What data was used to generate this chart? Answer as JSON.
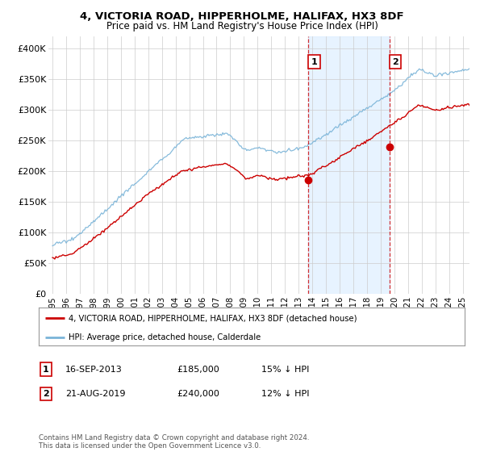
{
  "title": "4, VICTORIA ROAD, HIPPERHOLME, HALIFAX, HX3 8DF",
  "subtitle": "Price paid vs. HM Land Registry's House Price Index (HPI)",
  "legend_line1": "4, VICTORIA ROAD, HIPPERHOLME, HALIFAX, HX3 8DF (detached house)",
  "legend_line2": "HPI: Average price, detached house, Calderdale",
  "annotation1_label": "1",
  "annotation1_date": "16-SEP-2013",
  "annotation1_price": "£185,000",
  "annotation1_hpi": "15% ↓ HPI",
  "annotation2_label": "2",
  "annotation2_date": "21-AUG-2019",
  "annotation2_price": "£240,000",
  "annotation2_hpi": "12% ↓ HPI",
  "footnote": "Contains HM Land Registry data © Crown copyright and database right 2024.\nThis data is licensed under the Open Government Licence v3.0.",
  "hpi_color": "#7ab4d8",
  "price_color": "#cc0000",
  "shade_color": "#ddeeff",
  "annotation_color": "#cc0000",
  "background_color": "#ffffff",
  "grid_color": "#cccccc",
  "ylim": [
    0,
    420000
  ],
  "yticks": [
    0,
    50000,
    100000,
    150000,
    200000,
    250000,
    300000,
    350000,
    400000
  ],
  "ytick_labels": [
    "£0",
    "£50K",
    "£100K",
    "£150K",
    "£200K",
    "£250K",
    "£300K",
    "£350K",
    "£400K"
  ],
  "purchase1_x": 2013.71,
  "purchase1_y": 185000,
  "purchase2_x": 2019.64,
  "purchase2_y": 240000,
  "vline1_x": 2013.71,
  "vline2_x": 2019.64,
  "xmin": 1995,
  "xmax": 2025.5
}
